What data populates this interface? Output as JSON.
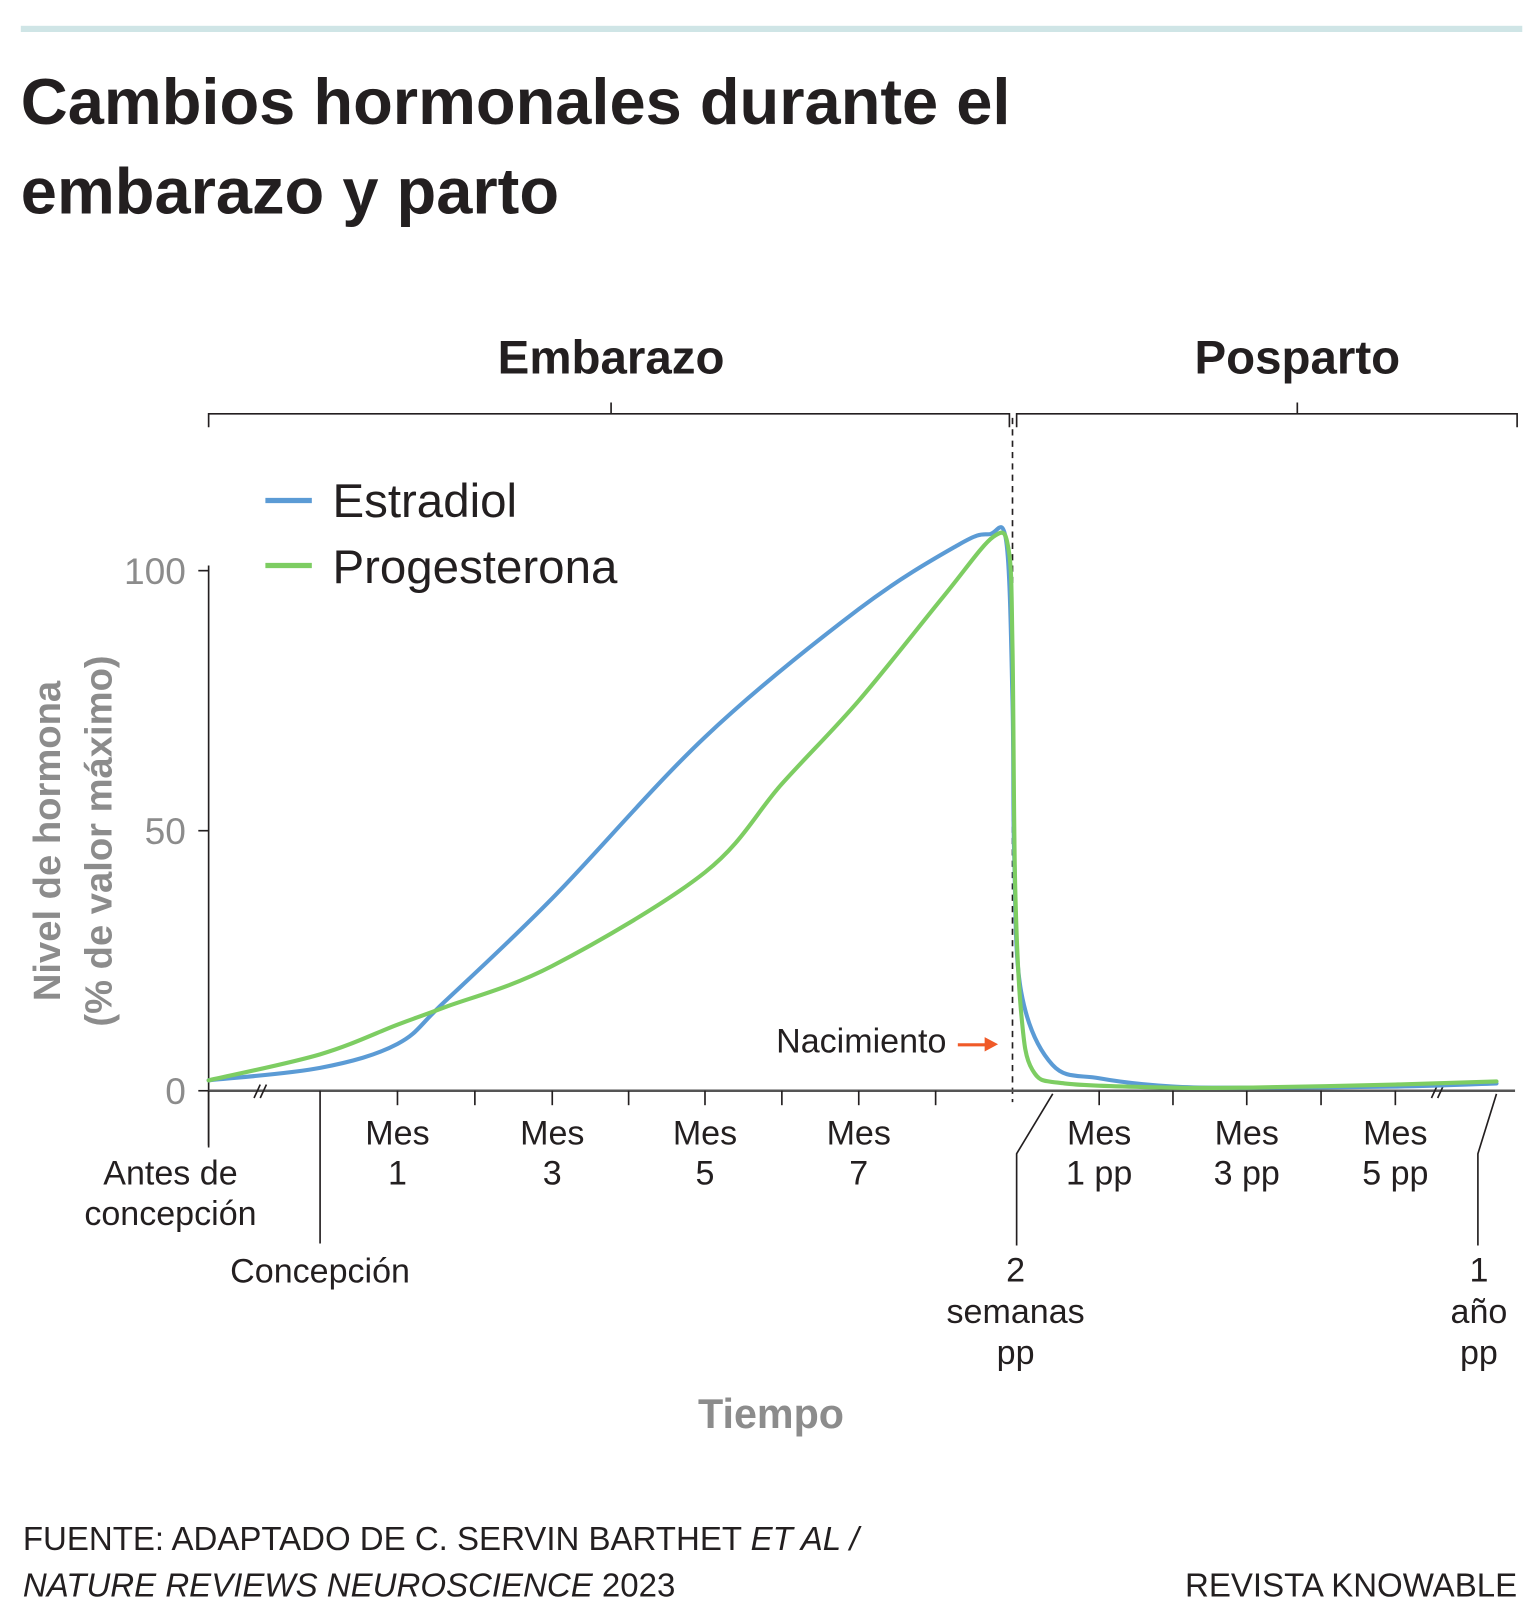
{
  "title_lines": [
    "Cambios hormonales durante el",
    "embarazo y parto"
  ],
  "colors": {
    "estradiol": "#5b9bd5",
    "progesterona": "#7dcd62",
    "rule": "#cfe5e6",
    "arrow": "#f05a28",
    "axis_text": "#8c8c8c"
  },
  "chart_data": {
    "type": "line",
    "sections": [
      "Embarazo",
      "Posparto"
    ],
    "ylabel_lines": [
      "Nivel de hormona",
      "(% de valor máximo)"
    ],
    "xlabel": "Tiempo",
    "ylim": [
      0,
      100
    ],
    "yticks": [
      "100",
      "50",
      "0"
    ],
    "yticks_values": [
      100,
      50,
      0
    ],
    "x_segments": {
      "pregnancy_units": "months of pregnancy",
      "postpartum_units": "months postpartum",
      "axis_breaks": [
        "between before-conception and conception",
        "between month 5 pp and 1 year pp"
      ]
    },
    "xtick_labels": {
      "antes": [
        "Antes de",
        "concepción"
      ],
      "concepcion": "Concepción",
      "pregnancy": [
        [
          "Mes",
          "1"
        ],
        [
          "Mes",
          "3"
        ],
        [
          "Mes",
          "5"
        ],
        [
          "Mes",
          "7"
        ]
      ],
      "pregnancy_months": [
        1,
        3,
        5,
        7
      ],
      "postpartum": [
        [
          "Mes",
          "1 pp"
        ],
        [
          "Mes",
          "3 pp"
        ],
        [
          "Mes",
          "5 pp"
        ]
      ],
      "postpartum_months": [
        1,
        3,
        5
      ],
      "two_weeks": [
        "2",
        "semanas",
        "pp"
      ],
      "one_year": [
        "1",
        "año",
        "pp"
      ]
    },
    "annotation": "Nacimiento",
    "legend": {
      "placement": "top-left"
    },
    "series": [
      {
        "name": "Estradiol",
        "color": "#5b9bd5",
        "pregnancy": [
          [
            -1.5,
            2
          ],
          [
            0,
            4.4
          ],
          [
            1,
            9
          ],
          [
            1.6,
            17
          ],
          [
            3,
            37
          ],
          [
            5,
            68
          ],
          [
            7,
            92.6
          ],
          [
            8.3,
            105
          ],
          [
            8.7,
            107
          ],
          [
            8.92,
            105.5
          ],
          [
            9,
            75
          ]
        ],
        "postpartum": [
          [
            0.02,
            45
          ],
          [
            0.1,
            19
          ],
          [
            0.46,
            5
          ],
          [
            1,
            2.4
          ],
          [
            2,
            0.8
          ],
          [
            3,
            0.6
          ],
          [
            5,
            0.8
          ],
          [
            12,
            1.4
          ]
        ]
      },
      {
        "name": "Progesterona",
        "color": "#7dcd62",
        "pregnancy": [
          [
            -1.5,
            2
          ],
          [
            0,
            7
          ],
          [
            1,
            12.7
          ],
          [
            1.6,
            16
          ],
          [
            3,
            24
          ],
          [
            5,
            42
          ],
          [
            6,
            59
          ],
          [
            7,
            75
          ],
          [
            8.1,
            95
          ],
          [
            8.75,
            106.5
          ],
          [
            8.95,
            104
          ],
          [
            9,
            85
          ]
        ],
        "postpartum": [
          [
            0.03,
            40
          ],
          [
            0.1,
            15
          ],
          [
            0.23,
            4
          ],
          [
            0.6,
            1.4
          ],
          [
            2,
            0.6
          ],
          [
            3,
            0.6
          ],
          [
            5,
            1.2
          ],
          [
            12,
            1.8
          ]
        ]
      }
    ]
  },
  "footer": {
    "source_line1_plain": "FUENTE: ADAPTADO DE C. SERVIN BARTHET ",
    "source_line1_italic": "ET AL /",
    "source_line2_italic": "NATURE REVIEWS NEUROSCIENCE",
    "source_line2_plain": " 2023",
    "credit": "REVISTA KNOWABLE"
  }
}
